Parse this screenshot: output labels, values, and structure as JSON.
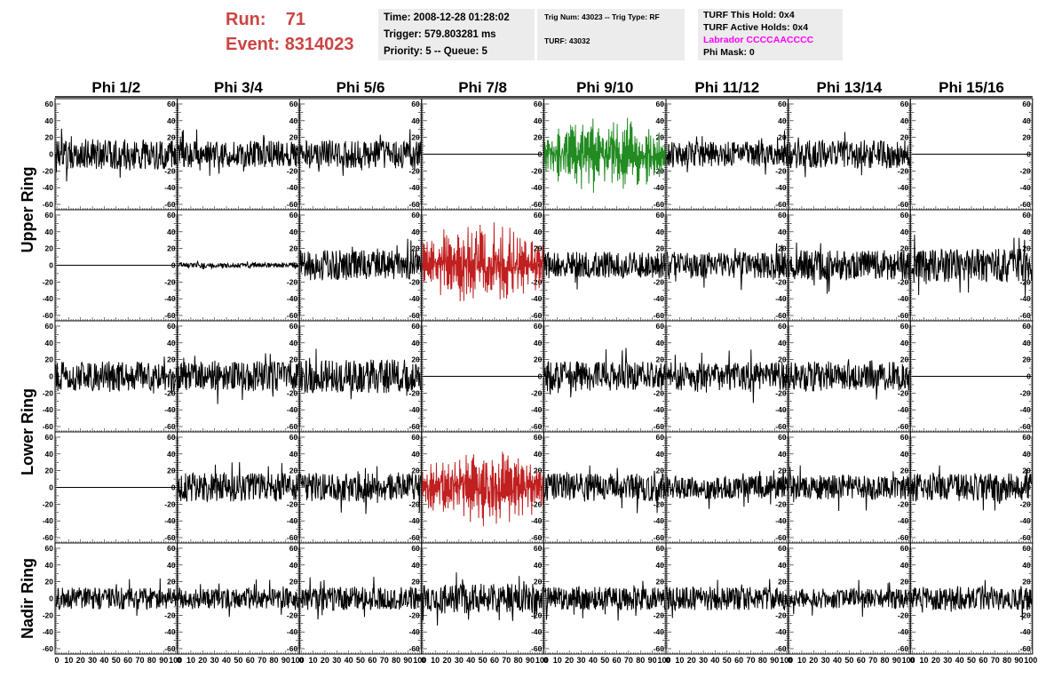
{
  "header": {
    "run_label": "Run:",
    "run_value": "71",
    "event_label": "Event:",
    "event_value": "8314023",
    "run_color": "#cc4444"
  },
  "info_box_1": {
    "time": "Time: 2008-12-28 01:28:02",
    "trigger": "Trigger: 579.803281 ms",
    "priority": "Priority: 5 -- Queue: 5"
  },
  "info_box_2": {
    "trig": "Trig Num: 43023 -- Trig Type: RF",
    "turf": "TURF: 43032"
  },
  "info_box_3": {
    "this_hold": "TURF This Hold: 0x4",
    "active_holds": "TURF Active Holds: 0x4",
    "labrador": "Labrador CCCCAACCCC",
    "phi_mask": "Phi Mask: 0",
    "labrador_color": "#ff00ff"
  },
  "chart_data": {
    "type": "line",
    "columns": [
      "Phi 1/2",
      "Phi 3/4",
      "Phi 5/6",
      "Phi 7/8",
      "Phi 9/10",
      "Phi 11/12",
      "Phi 13/14",
      "Phi 15/16"
    ],
    "ring_labels": [
      "Upper Ring",
      "Lower Ring",
      "Nadir Ring"
    ],
    "rows": 5,
    "ylim": [
      -60,
      60
    ],
    "ytick_labels": [
      "60",
      "40",
      "20",
      "0",
      "-20",
      "-40",
      "-60"
    ],
    "xlim": [
      0,
      100
    ],
    "xtick_labels": [
      "0",
      "10",
      "20",
      "30",
      "40",
      "50",
      "60",
      "70",
      "80",
      "90",
      "100"
    ],
    "colors": {
      "normal": "#000000",
      "triggered_green": "#228b22",
      "triggered_red": "#c02020"
    },
    "panels": [
      [
        "n18",
        "n16",
        "n17",
        "flat",
        "g45",
        "n15",
        "n17",
        "flat"
      ],
      [
        "flat",
        "n3",
        "n18",
        "r50",
        "n16",
        "n16",
        "n18",
        "n20"
      ],
      [
        "n18",
        "n18",
        "n20",
        "flat",
        "n18",
        "n17",
        "n18",
        "flat"
      ],
      [
        "flat",
        "n17",
        "n17",
        "r45",
        "n17",
        "n14",
        "n15",
        "n17"
      ],
      [
        "n13",
        "n12",
        "n14",
        "n18",
        "n14",
        "n14",
        "n12",
        "n14"
      ]
    ]
  }
}
